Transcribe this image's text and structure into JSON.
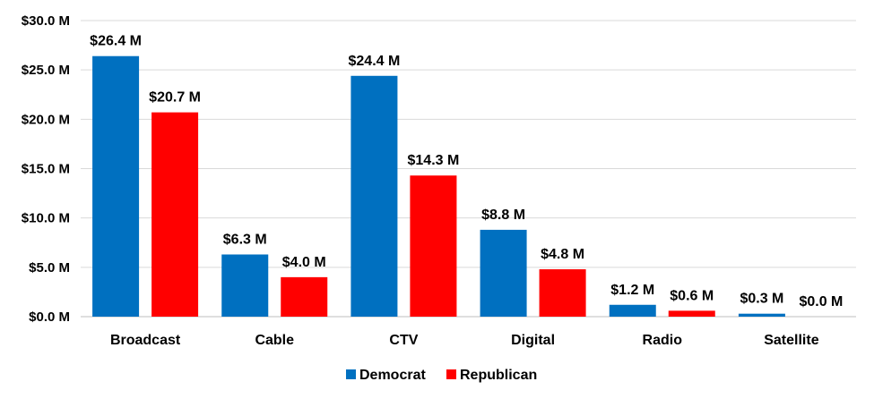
{
  "chart_data": {
    "type": "bar",
    "categories": [
      "Broadcast",
      "Cable",
      "CTV",
      "Digital",
      "Radio",
      "Satellite"
    ],
    "series": [
      {
        "name": "Democrat",
        "color": "#0070C0",
        "values": [
          26.4,
          6.3,
          24.4,
          8.8,
          1.2,
          0.3
        ],
        "labels": [
          "$26.4 M",
          "$6.3 M",
          "$24.4 M",
          "$8.8 M",
          "$1.2 M",
          "$0.3 M"
        ]
      },
      {
        "name": "Republican",
        "color": "#FF0000",
        "values": [
          20.7,
          4.0,
          14.3,
          4.8,
          0.6,
          0.0
        ],
        "labels": [
          "$20.7 M",
          "$4.0 M",
          "$14.3 M",
          "$4.8 M",
          "$0.6 M",
          "$0.0 M"
        ]
      }
    ],
    "ylim": [
      0,
      30
    ],
    "yticks": [
      0,
      5,
      10,
      15,
      20,
      25,
      30
    ],
    "ytick_labels": [
      "$0.0 M",
      "$5.0 M",
      "$10.0 M",
      "$15.0 M",
      "$20.0 M",
      "$25.0 M",
      "$30.0 M"
    ],
    "title": "",
    "xlabel": "",
    "ylabel": "",
    "grid": true,
    "legend_position": "bottom"
  }
}
